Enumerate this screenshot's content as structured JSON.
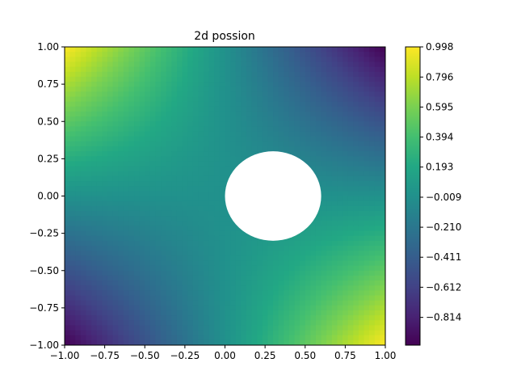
{
  "chart_data": {
    "type": "heatmap",
    "title": "2d possion",
    "xlabel": "",
    "ylabel": "",
    "xlim": [
      -1.0,
      1.0
    ],
    "ylim": [
      -1.0,
      1.0
    ],
    "x_ticks": [
      "−1.00",
      "−0.75",
      "−0.50",
      "−0.25",
      "0.00",
      "0.25",
      "0.50",
      "0.75",
      "1.00"
    ],
    "y_ticks": [
      "−1.00",
      "−0.75",
      "−0.50",
      "−0.25",
      "0.00",
      "0.25",
      "0.50",
      "0.75",
      "1.00"
    ],
    "x_tick_values": [
      -1.0,
      -0.75,
      -0.5,
      -0.25,
      0.0,
      0.25,
      0.5,
      0.75,
      1.0
    ],
    "y_tick_values": [
      -1.0,
      -0.75,
      -0.5,
      -0.25,
      0.0,
      0.25,
      0.5,
      0.75,
      1.0
    ],
    "field": "u(x,y) = -x*y",
    "hole": {
      "center": [
        0.3,
        0.0
      ],
      "rx": 0.3,
      "ry": 0.3
    },
    "colormap": "viridis",
    "colorbar": {
      "min": -1.0,
      "max": 0.998,
      "ticks": [
        "0.998",
        "0.796",
        "0.595",
        "0.394",
        "0.193",
        "−0.009",
        "−0.210",
        "−0.411",
        "−0.612",
        "−0.814"
      ],
      "tick_values": [
        0.998,
        0.796,
        0.595,
        0.394,
        0.193,
        -0.009,
        -0.21,
        -0.411,
        -0.612,
        -0.814
      ]
    },
    "grid": false
  },
  "colors": {
    "viridis_low": "#440154",
    "viridis_mid": "#21918c",
    "viridis_high": "#fde725",
    "hole": "#ffffff",
    "axis": "#000000"
  }
}
